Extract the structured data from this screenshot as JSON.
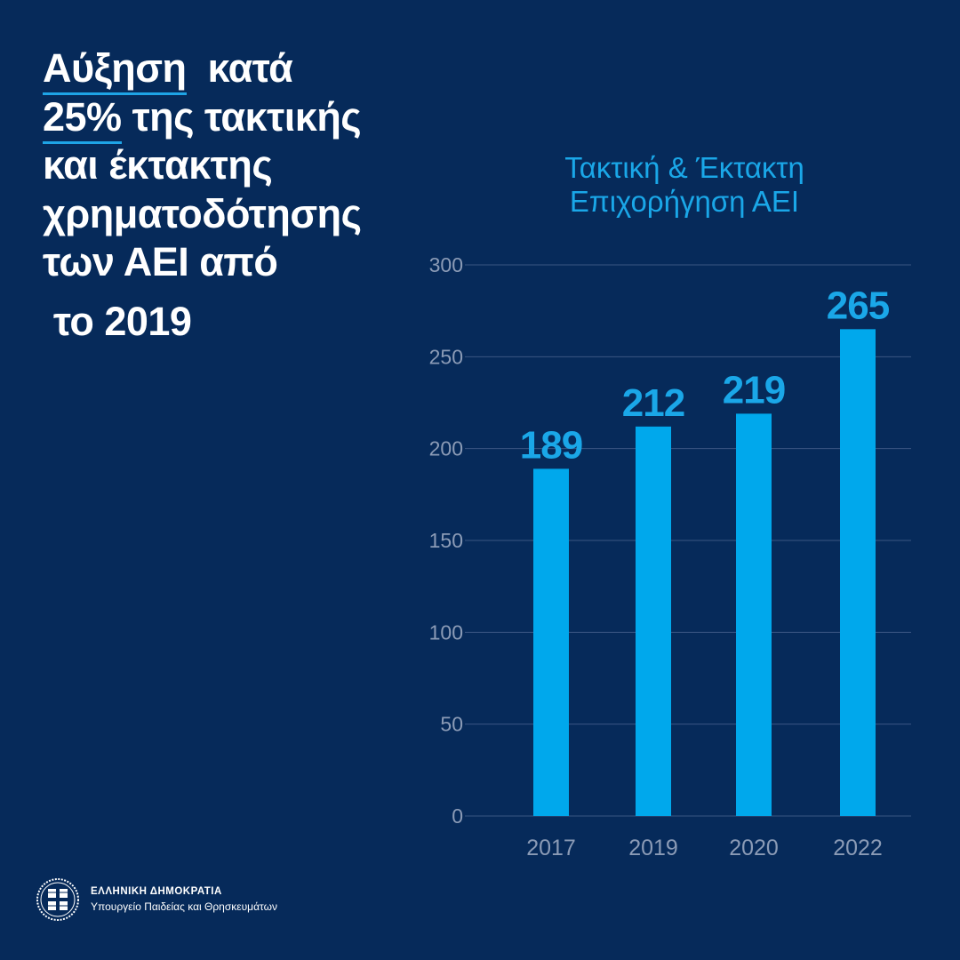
{
  "headline": {
    "line1_underlined": "Αύξηση",
    "line1_rest": "  κατά",
    "line2_underlined": "25%",
    "line2_rest": " της τακτικής",
    "line3": "και έκτακτης",
    "line4": "χρηματοδότησης",
    "line5": "των ΑΕΙ από",
    "line6": " το 2019"
  },
  "footer": {
    "org": "ΕΛΛΗΝΙΚΗ ΔΗΜΟΚΡΑΤΙΑ",
    "ministry": "Υπουργείο Παιδείας και Θρησκευμάτων",
    "emblem": "greek-republic-emblem"
  },
  "colors": {
    "background": "#062a5a",
    "bar": "#00a8ec",
    "label": "#1aa7e8",
    "axis_text": "#8b9bb6",
    "grid": "#3b5683"
  },
  "chart_data": {
    "type": "bar",
    "title_lines": [
      "Τακτική & Έκτακτη",
      "Επιχορήγηση ΑΕΙ"
    ],
    "categories": [
      "2017",
      "2019",
      "2020",
      "2022"
    ],
    "values": [
      189,
      212,
      219,
      265
    ],
    "data_labels": [
      "189",
      "212",
      "219",
      "265"
    ],
    "ylim": [
      0,
      300
    ],
    "yticks": [
      "0",
      "50",
      "100",
      "150",
      "200",
      "250",
      "300"
    ],
    "grid": true,
    "xlabel": "",
    "ylabel": ""
  }
}
